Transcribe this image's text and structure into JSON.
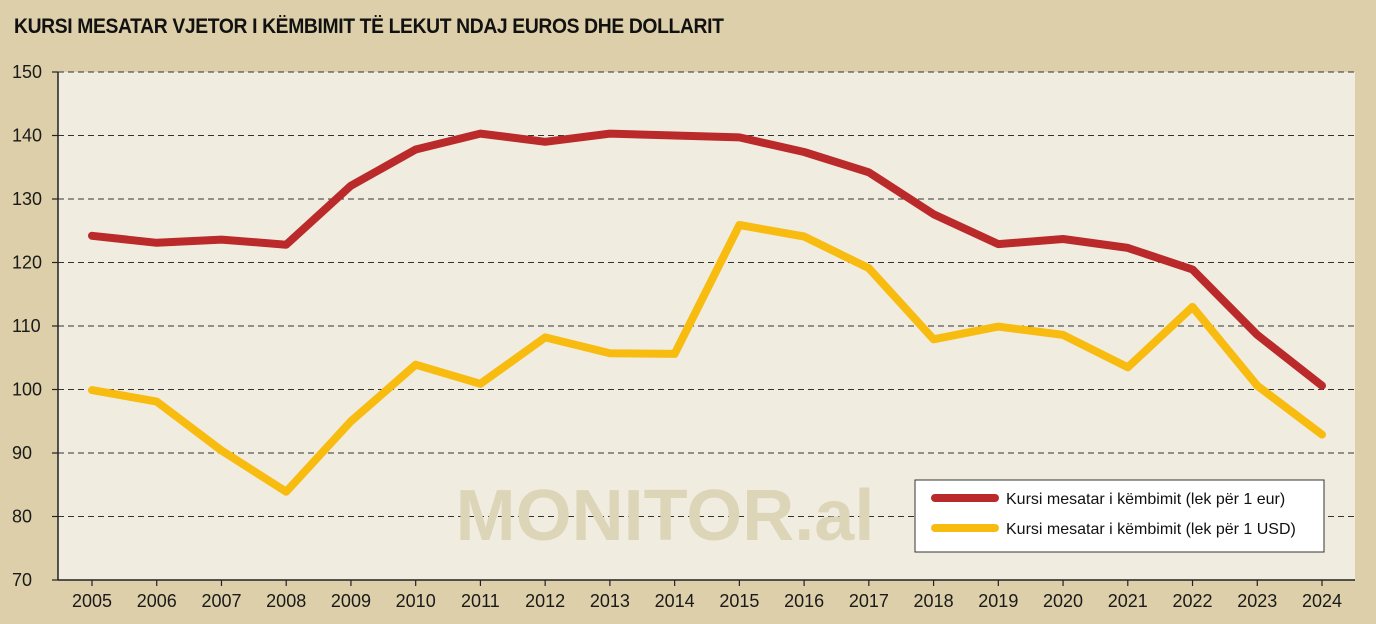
{
  "chart_data": {
    "type": "line",
    "title": "KURSI MESATAR VJETOR I KËMBIMIT TË LEKUT NDAJ EUROS DHE DOLLARIT",
    "xlabel": "",
    "ylabel": "",
    "x": [
      "2005",
      "2006",
      "2007",
      "2008",
      "2009",
      "2010",
      "2011",
      "2012",
      "2013",
      "2014",
      "2015",
      "2016",
      "2017",
      "2018",
      "2019",
      "2020",
      "2021",
      "2022",
      "2023",
      "2024"
    ],
    "ylim": [
      70,
      150
    ],
    "yticks": [
      "70",
      "80",
      "90",
      "100",
      "110",
      "120",
      "130",
      "140",
      "150"
    ],
    "grid": true,
    "legend_position": "bottom-right",
    "watermark": "MONITOR.al",
    "series": [
      {
        "name": "Kursi mesatar i këmbimit (lek për 1 eur)",
        "color": "#bb2a2a",
        "values": [
          124.2,
          123.1,
          123.6,
          122.8,
          132.1,
          137.8,
          140.3,
          139.0,
          140.3,
          140.0,
          139.7,
          137.4,
          134.2,
          127.6,
          122.9,
          123.7,
          122.3,
          118.9,
          108.6,
          100.6
        ]
      },
      {
        "name": "Kursi mesatar i këmbimit (lek për 1 USD)",
        "color": "#f8bc10",
        "values": [
          99.9,
          98.1,
          90.4,
          83.9,
          95.0,
          103.9,
          100.9,
          108.2,
          105.7,
          105.6,
          125.9,
          124.1,
          119.1,
          107.9,
          109.9,
          108.6,
          103.5,
          113.0,
          100.6,
          92.9
        ]
      }
    ]
  }
}
